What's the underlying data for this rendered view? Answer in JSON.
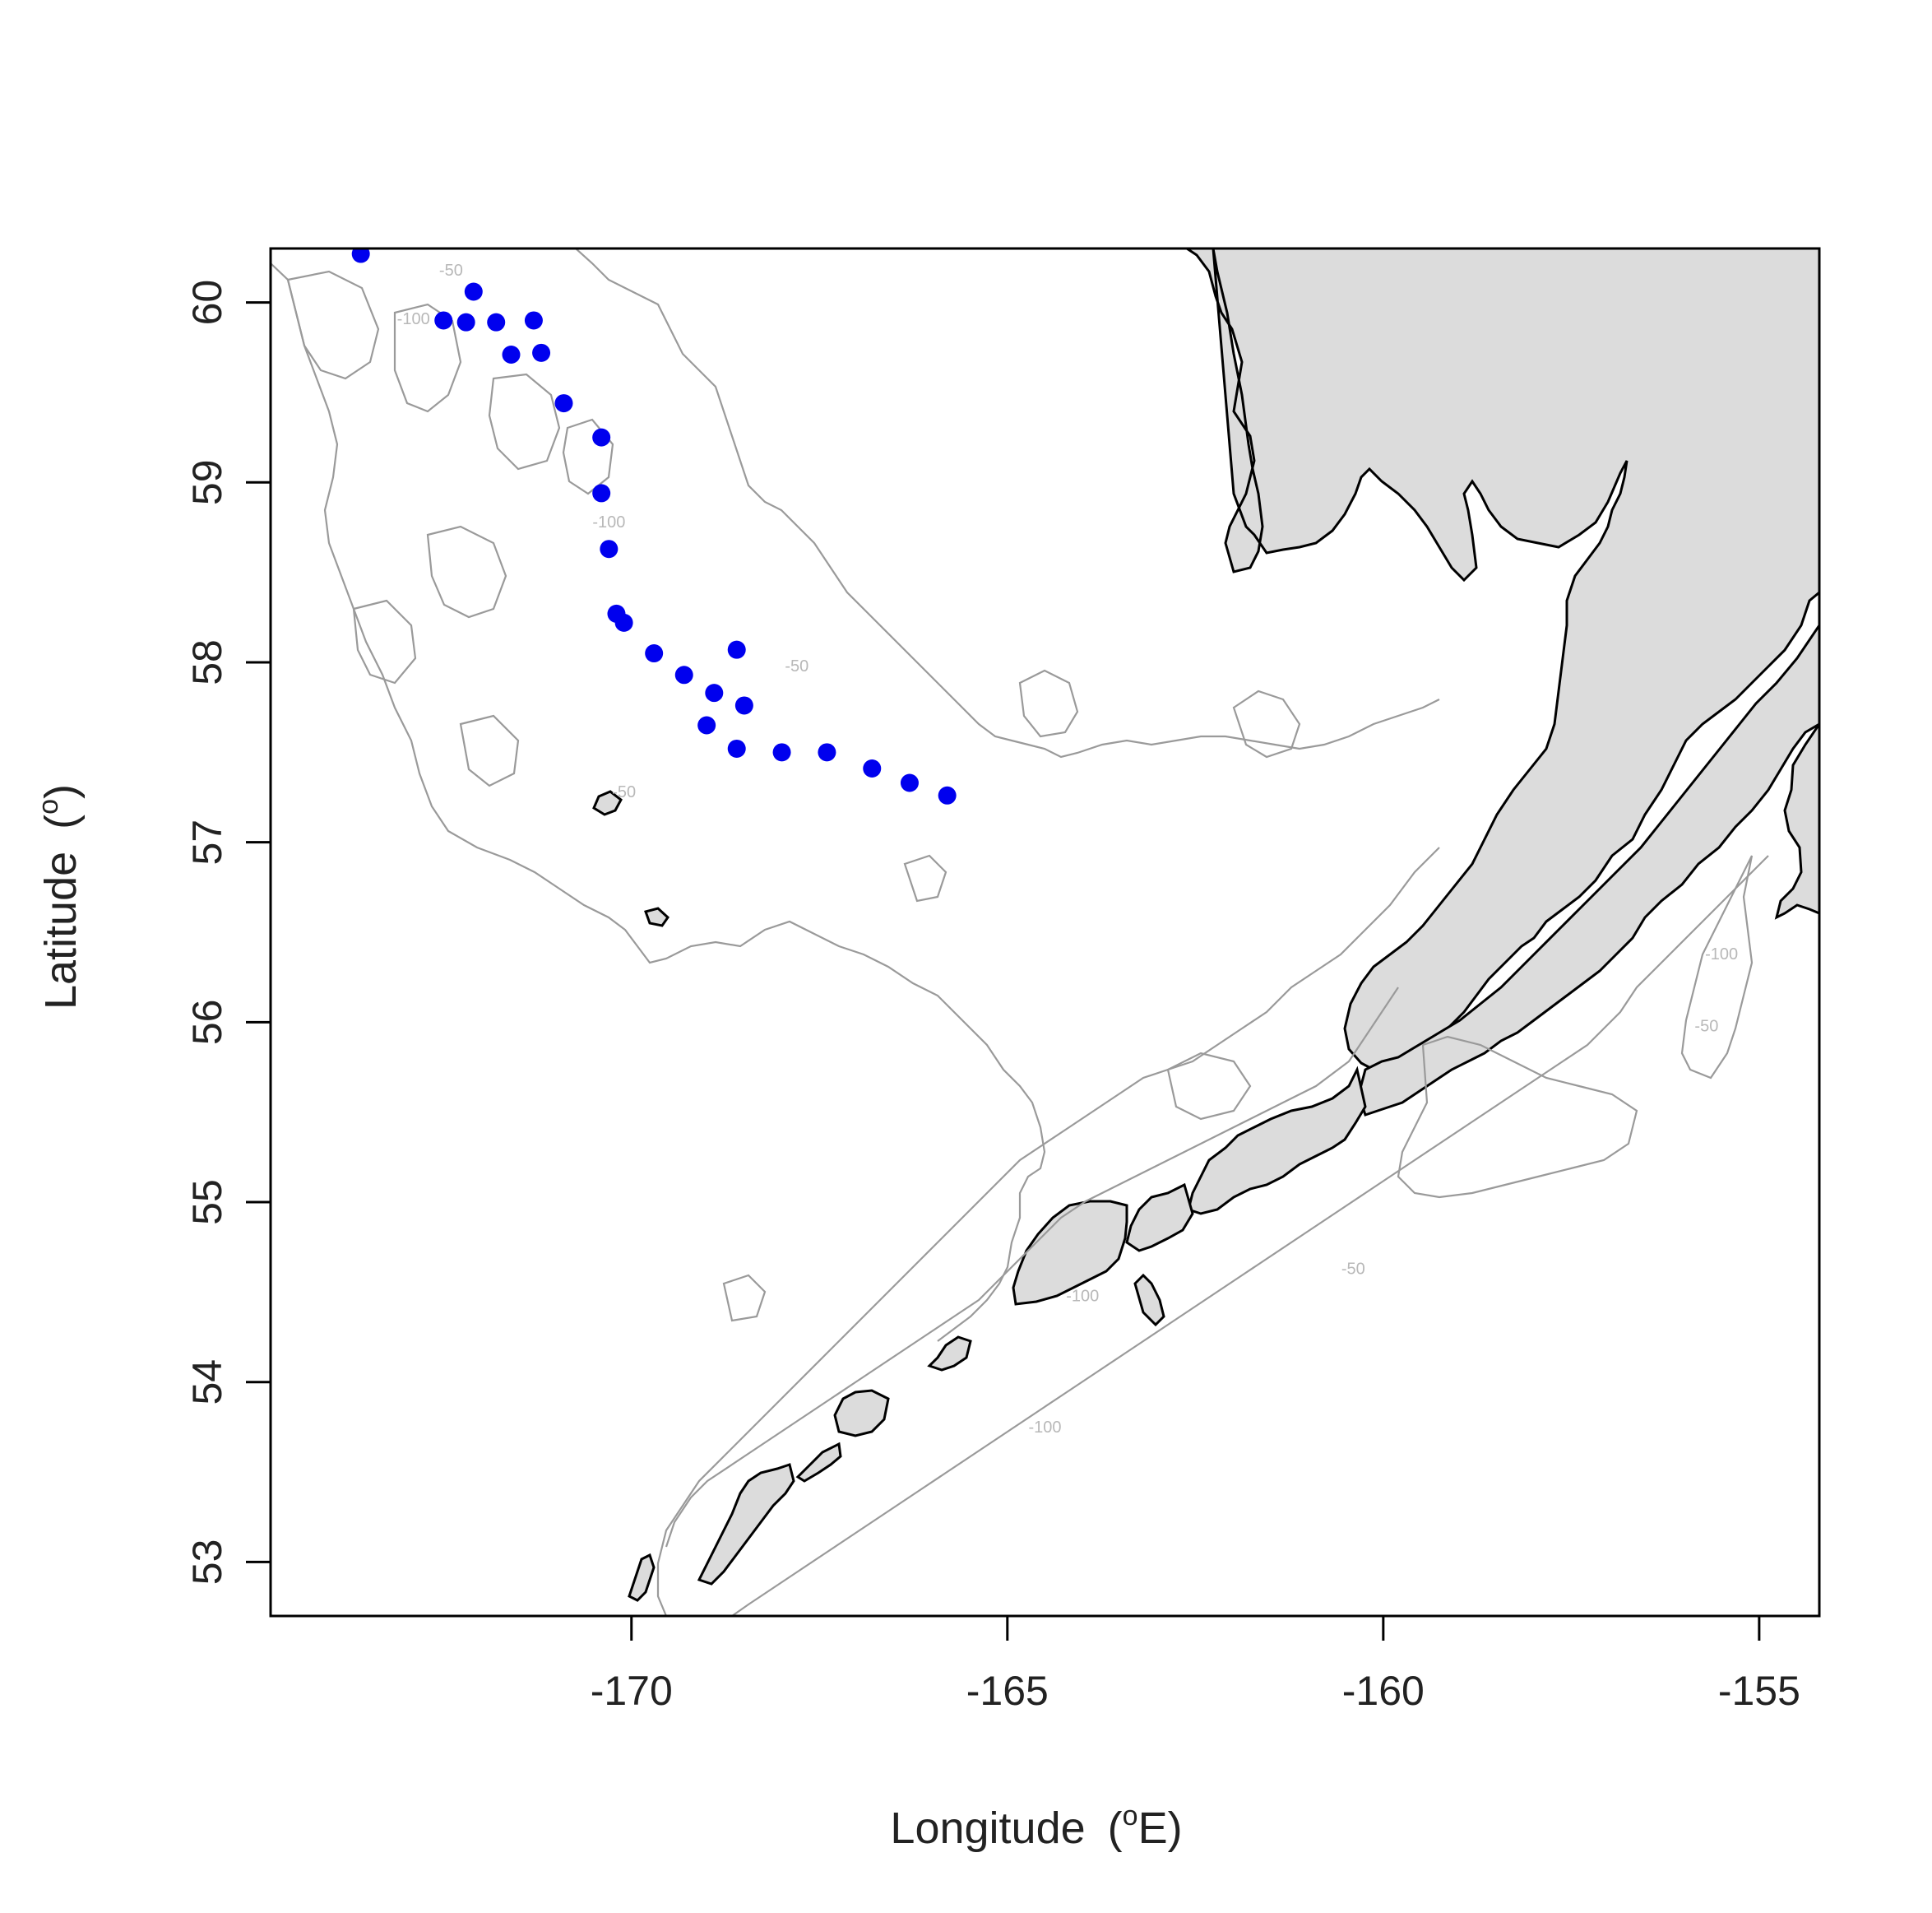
{
  "chart_data": {
    "type": "scatter",
    "title": "",
    "xlabel": "Longitude",
    "xlabel_unit": "(",
    "xlabel_sup": "o",
    "xlabel_end": "E)",
    "ylabel": "Latitude",
    "ylabel_unit": "(",
    "ylabel_sup": "o",
    "ylabel_end": ")",
    "xlim": [
      -174.8,
      -154.2
    ],
    "ylim": [
      52.7,
      60.3
    ],
    "x_ticks": [
      -170,
      -165,
      -160,
      -155
    ],
    "y_ticks": [
      53,
      54,
      55,
      56,
      57,
      58,
      59,
      60
    ],
    "grid": false,
    "point_color": "#0000ee",
    "land_color": "#dcdcdc",
    "coast_color": "#000000",
    "contour_color": "#9a9a9a",
    "contour_levels": [
      -50,
      -100
    ],
    "contour_labels": [
      {
        "text": "-50",
        "x": -172.4,
        "y": 60.15
      },
      {
        "text": "-100",
        "x": -172.9,
        "y": 59.88
      },
      {
        "text": "-100",
        "x": -170.3,
        "y": 58.75
      },
      {
        "text": "-50",
        "x": -167.8,
        "y": 57.95
      },
      {
        "text": "-50",
        "x": -170.1,
        "y": 57.25
      },
      {
        "text": "-100",
        "x": -164.0,
        "y": 54.45
      },
      {
        "text": "-100",
        "x": -164.5,
        "y": 53.72
      },
      {
        "text": "-50",
        "x": -160.4,
        "y": 54.6
      },
      {
        "text": "-100",
        "x": -155.5,
        "y": 56.35
      },
      {
        "text": "-50",
        "x": -155.7,
        "y": 55.95
      }
    ],
    "points": [
      {
        "x": -173.6,
        "y": 60.27
      },
      {
        "x": -172.1,
        "y": 60.06
      },
      {
        "x": -172.5,
        "y": 59.9
      },
      {
        "x": -172.2,
        "y": 59.89
      },
      {
        "x": -171.8,
        "y": 59.89
      },
      {
        "x": -171.3,
        "y": 59.9
      },
      {
        "x": -171.6,
        "y": 59.71
      },
      {
        "x": -171.2,
        "y": 59.72
      },
      {
        "x": -170.9,
        "y": 59.44
      },
      {
        "x": -170.4,
        "y": 59.25
      },
      {
        "x": -170.4,
        "y": 58.94
      },
      {
        "x": -170.3,
        "y": 58.63
      },
      {
        "x": -170.2,
        "y": 58.27
      },
      {
        "x": -170.1,
        "y": 58.22
      },
      {
        "x": -169.7,
        "y": 58.05
      },
      {
        "x": -169.3,
        "y": 57.93
      },
      {
        "x": -168.9,
        "y": 57.83
      },
      {
        "x": -168.6,
        "y": 58.07
      },
      {
        "x": -168.5,
        "y": 57.76
      },
      {
        "x": -169.0,
        "y": 57.65
      },
      {
        "x": -168.6,
        "y": 57.52
      },
      {
        "x": -168.0,
        "y": 57.5
      },
      {
        "x": -167.4,
        "y": 57.5
      },
      {
        "x": -166.8,
        "y": 57.41
      },
      {
        "x": -166.3,
        "y": 57.33
      },
      {
        "x": -165.8,
        "y": 57.26
      }
    ]
  }
}
